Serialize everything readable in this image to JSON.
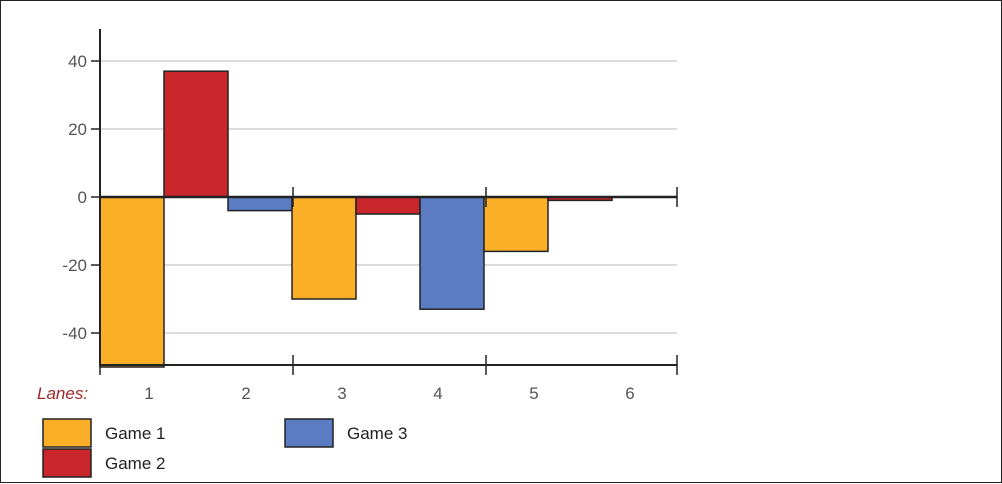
{
  "chart_data": {
    "type": "bar",
    "x_axis_label": "Lanes:",
    "categories": [
      "1",
      "2",
      "3",
      "4",
      "5",
      "6"
    ],
    "ylim": [
      -50,
      50
    ],
    "yticks": [
      40,
      20,
      0,
      -20,
      -40
    ],
    "grid": true,
    "legend_position": "bottom-left",
    "series": [
      {
        "name": "Game 1",
        "color": "#fbae28",
        "values": [
          -50,
          null,
          -30,
          null,
          -16,
          null
        ]
      },
      {
        "name": "Game 2",
        "color": "#c9262c",
        "values": [
          37,
          null,
          -5,
          null,
          -1,
          null
        ]
      },
      {
        "name": "Game 3",
        "color": "#5b7cc2",
        "values": [
          null,
          -4,
          null,
          -33,
          null,
          null
        ]
      }
    ]
  }
}
